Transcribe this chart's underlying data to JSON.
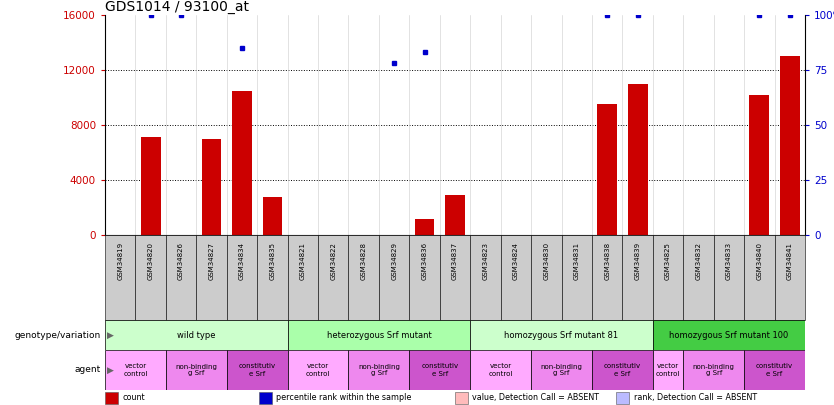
{
  "title": "GDS1014 / 93100_at",
  "samples": [
    "GSM34819",
    "GSM34820",
    "GSM34826",
    "GSM34827",
    "GSM34834",
    "GSM34835",
    "GSM34821",
    "GSM34822",
    "GSM34828",
    "GSM34829",
    "GSM34836",
    "GSM34837",
    "GSM34823",
    "GSM34824",
    "GSM34830",
    "GSM34831",
    "GSM34838",
    "GSM34839",
    "GSM34825",
    "GSM34832",
    "GSM34833",
    "GSM34840",
    "GSM34841"
  ],
  "bar_values": [
    0,
    7100,
    0,
    7000,
    10500,
    2800,
    0,
    0,
    0,
    0,
    1200,
    2900,
    0,
    0,
    0,
    0,
    9500,
    11000,
    0,
    0,
    0,
    10200,
    13000
  ],
  "dot_values": [
    null,
    100,
    100,
    null,
    85,
    null,
    null,
    null,
    null,
    78,
    83,
    null,
    null,
    null,
    null,
    null,
    100,
    100,
    null,
    null,
    null,
    100,
    100
  ],
  "ylim_left": [
    0,
    16000
  ],
  "ylim_right": [
    0,
    100
  ],
  "yticks_left": [
    0,
    4000,
    8000,
    12000,
    16000
  ],
  "yticks_right": [
    0,
    25,
    50,
    75,
    100
  ],
  "ytick_labels_left": [
    "0",
    "4000",
    "8000",
    "12000",
    "16000"
  ],
  "ytick_labels_right": [
    "0",
    "25",
    "50",
    "75",
    "100%"
  ],
  "bar_color": "#cc0000",
  "dot_color": "#0000cc",
  "title_fontsize": 10,
  "axis_label_color_left": "#cc0000",
  "axis_label_color_right": "#0000cc",
  "grid_color": "#aaaaaa",
  "sample_bg_color": "#cccccc",
  "genotype_groups": [
    {
      "label": "wild type",
      "start": 0,
      "end": 6,
      "color": "#ccffcc"
    },
    {
      "label": "heterozygous Srf mutant",
      "start": 6,
      "end": 12,
      "color": "#aaffaa"
    },
    {
      "label": "homozygous Srf mutant 81",
      "start": 12,
      "end": 18,
      "color": "#ccffcc"
    },
    {
      "label": "homozygous Srf mutant 100",
      "start": 18,
      "end": 23,
      "color": "#44cc44"
    }
  ],
  "agent_groups": [
    {
      "label": "vector\ncontrol",
      "start": 0,
      "end": 2,
      "color": "#ffaaff"
    },
    {
      "label": "non-binding\ng Srf",
      "start": 2,
      "end": 4,
      "color": "#ee88ee"
    },
    {
      "label": "constitutiv\ne Srf",
      "start": 4,
      "end": 6,
      "color": "#cc55cc"
    },
    {
      "label": "vector\ncontrol",
      "start": 6,
      "end": 8,
      "color": "#ffaaff"
    },
    {
      "label": "non-binding\ng Srf",
      "start": 8,
      "end": 10,
      "color": "#ee88ee"
    },
    {
      "label": "constitutiv\ne Srf",
      "start": 10,
      "end": 12,
      "color": "#cc55cc"
    },
    {
      "label": "vector\ncontrol",
      "start": 12,
      "end": 14,
      "color": "#ffaaff"
    },
    {
      "label": "non-binding\ng Srf",
      "start": 14,
      "end": 16,
      "color": "#ee88ee"
    },
    {
      "label": "constitutiv\ne Srf",
      "start": 16,
      "end": 18,
      "color": "#cc55cc"
    },
    {
      "label": "vector\ncontrol",
      "start": 18,
      "end": 19,
      "color": "#ffaaff"
    },
    {
      "label": "non-binding\ng Srf",
      "start": 19,
      "end": 21,
      "color": "#ee88ee"
    },
    {
      "label": "constitutiv\ne Srf",
      "start": 21,
      "end": 23,
      "color": "#cc55cc"
    }
  ],
  "legend_items": [
    {
      "label": "count",
      "color": "#cc0000"
    },
    {
      "label": "percentile rank within the sample",
      "color": "#0000cc"
    },
    {
      "label": "value, Detection Call = ABSENT",
      "color": "#ffbbbb"
    },
    {
      "label": "rank, Detection Call = ABSENT",
      "color": "#bbbbff"
    }
  ]
}
